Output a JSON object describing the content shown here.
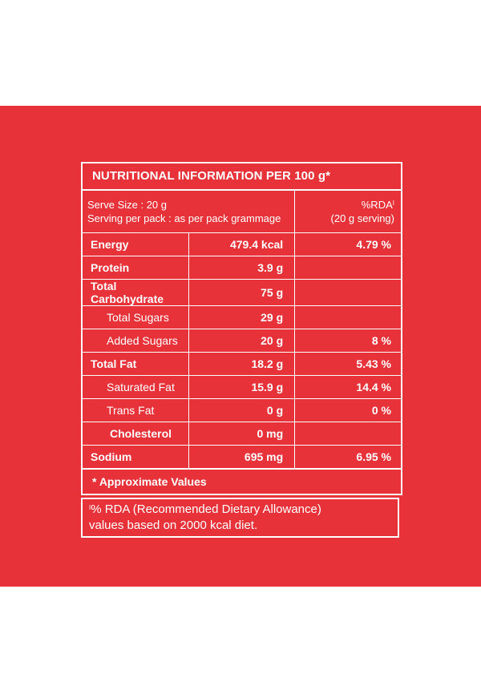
{
  "colors": {
    "background": "#e7323a",
    "foreground": "#ffffff",
    "page": "#ffffff"
  },
  "panel": {
    "title": "NUTRITIONAL INFORMATION PER 100 g*",
    "serve_size": "Serve Size : 20 g",
    "serving_per_pack": "Serving per pack : as per pack grammage",
    "rda_header": "%RDA",
    "rda_mark": "I",
    "rda_serving": "(20 g serving)",
    "rows": [
      {
        "name": "Energy",
        "amount": "479.4 kcal",
        "rda": "4.79 %"
      },
      {
        "name": "Protein",
        "amount": "3.9 g",
        "rda": ""
      },
      {
        "name": "Total Carbohydrate",
        "amount": "75 g",
        "rda": ""
      },
      {
        "name": "Total Sugars",
        "amount": "29 g",
        "rda": ""
      },
      {
        "name": "Added Sugars",
        "amount": "20 g",
        "rda": "8 %"
      },
      {
        "name": "Total Fat",
        "amount": "18.2 g",
        "rda": "5.43 %"
      },
      {
        "name": "Saturated Fat",
        "amount": "15.9 g",
        "rda": "14.4 %"
      },
      {
        "name": "Trans Fat",
        "amount": "0 g",
        "rda": "0 %"
      },
      {
        "name": "Cholesterol",
        "amount": "0 mg",
        "rda": ""
      },
      {
        "name": "Sodium",
        "amount": "695 mg",
        "rda": "6.95 %"
      }
    ],
    "approx_note": "* Approximate Values"
  },
  "footer": {
    "mark": "I",
    "line1": "% RDA (Recommended Dietary Allowance)",
    "line2": "values based on 2000 kcal diet."
  }
}
